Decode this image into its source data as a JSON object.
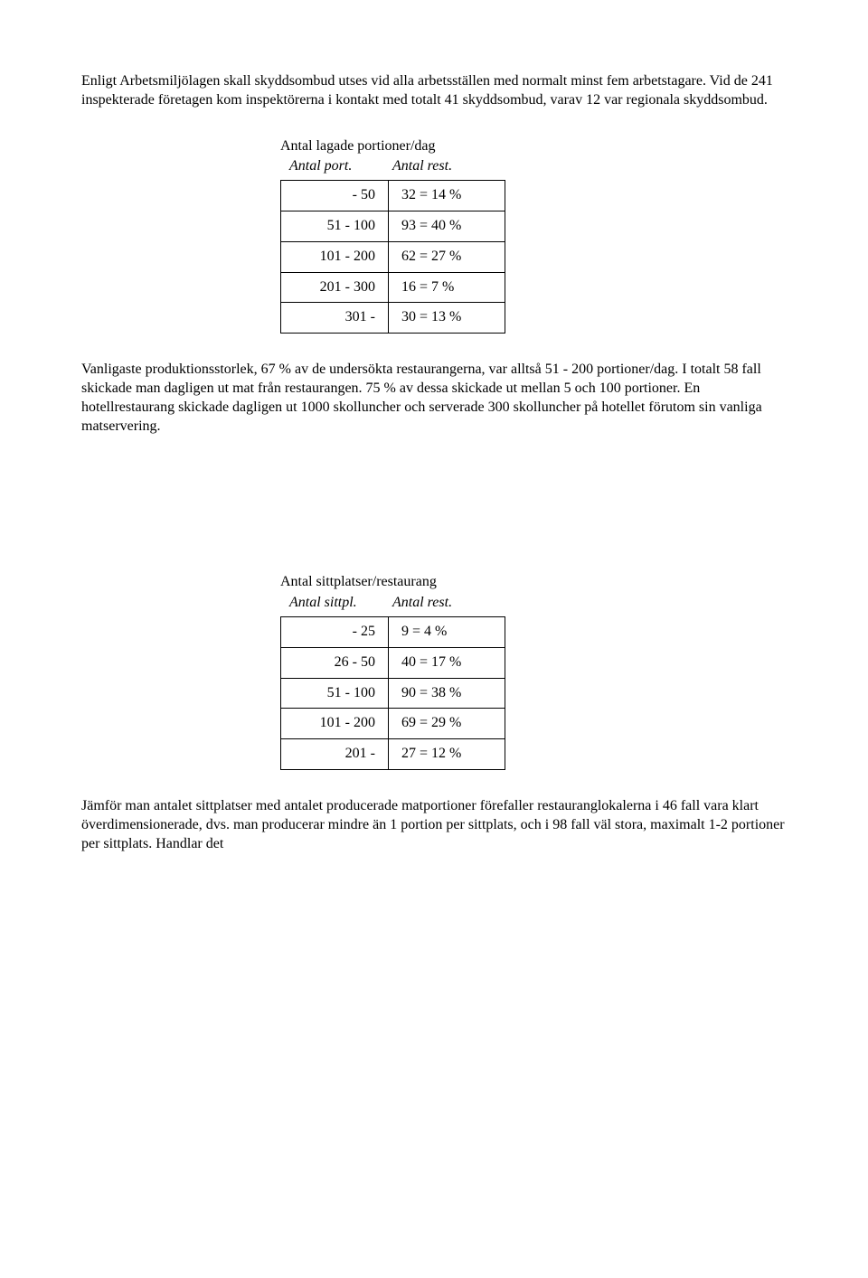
{
  "para1": "Enligt Arbetsmiljölagen skall skyddsombud utses vid alla arbetsställen med normalt  minst fem arbetstagare. Vid de 241 inspekterade företagen kom inspektörerna i kontakt med totalt 41 skyddsombud, varav 12 var regionala skyddsombud.",
  "table1": {
    "title": "Antal lagade portioner/dag",
    "head_left": "Antal port.",
    "head_right": "Antal rest.",
    "rows": [
      {
        "left": "-   50",
        "right": "32 = 14 %"
      },
      {
        "left": "51 - 100",
        "right": "93 = 40 %"
      },
      {
        "left": "101 - 200",
        "right": "62 = 27 %"
      },
      {
        "left": "201 - 300",
        "right": "16 = 7 %"
      },
      {
        "left": "301 -",
        "right": "30 = 13 %"
      }
    ]
  },
  "para2": "Vanligaste produktionsstorlek, 67 % av de undersökta restaurangerna, var alltså 51 - 200 portioner/dag. I totalt 58 fall skickade man dagligen ut mat från restaurangen. 75 % av dessa skickade ut mellan 5 och 100 portioner. En hotellrestaurang skickade dagligen ut 1000 skolluncher och serverade 300 skolluncher på hotellet förutom sin vanliga matservering.",
  "table2": {
    "title": "Antal sittplatser/restaurang",
    "head_left": "Antal sittpl.",
    "head_right": "Antal rest.",
    "rows": [
      {
        "left": "- 25",
        "right": "9 = 4 %"
      },
      {
        "left": "26 - 50",
        "right": "40 = 17 %"
      },
      {
        "left": "51 - 100",
        "right": "90 = 38 %"
      },
      {
        "left": "101 - 200",
        "right": "69 = 29 %"
      },
      {
        "left": "201 -",
        "right": "27 = 12 %"
      }
    ]
  },
  "para3": "Jämför man antalet sittplatser med antalet producerade matportioner förefaller restauranglokalerna i 46 fall vara klart överdimensionerade, dvs. man producerar mindre än 1 portion per sittplats, och i 98 fall väl stora, maximalt 1-2 portioner per sittplats. Handlar det"
}
